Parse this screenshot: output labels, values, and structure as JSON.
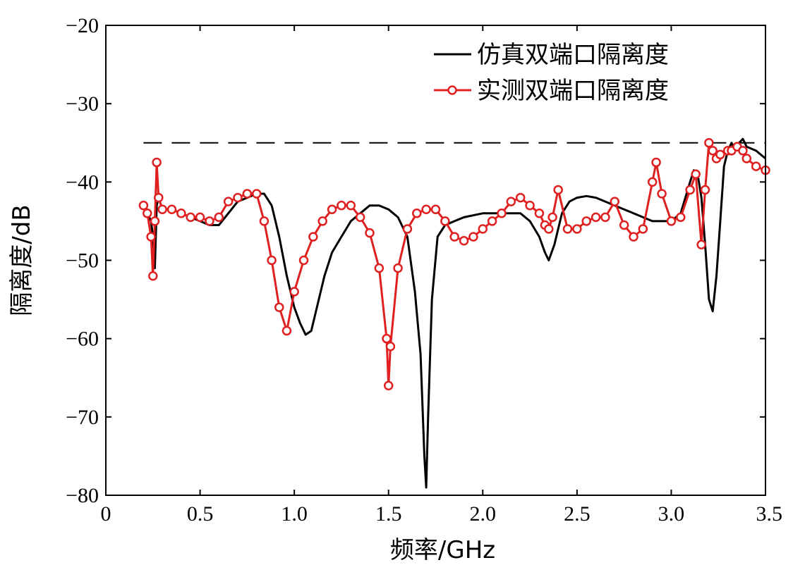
{
  "chart_data": {
    "type": "line",
    "title": "",
    "xlabel": "频率/GHz",
    "ylabel": "隔离度/dB",
    "xlim": [
      0,
      3.5
    ],
    "ylim": [
      -80,
      -20
    ],
    "xticks": [
      0,
      0.5,
      1.0,
      1.5,
      2.0,
      2.5,
      3.0,
      3.5
    ],
    "xtick_labels": [
      "0",
      "0.5",
      "1.0",
      "1.5",
      "2.0",
      "2.5",
      "3.0",
      "3.5"
    ],
    "yticks": [
      -80,
      -70,
      -60,
      -50,
      -40,
      -30,
      -20
    ],
    "ytick_labels": [
      "−80",
      "−70",
      "−60",
      "−50",
      "−40",
      "−30",
      "−20"
    ],
    "grid": false,
    "legend_position": "top-right",
    "reference_line": {
      "y": -35,
      "style": "dashed",
      "color": "#000000"
    },
    "series": [
      {
        "name": "仿真双端口隔离度",
        "color": "#000000",
        "marker": "none",
        "x": [
          0.2,
          0.22,
          0.24,
          0.25,
          0.26,
          0.27,
          0.28,
          0.3,
          0.35,
          0.4,
          0.45,
          0.5,
          0.55,
          0.6,
          0.65,
          0.7,
          0.75,
          0.8,
          0.84,
          0.88,
          0.92,
          0.96,
          1.0,
          1.03,
          1.06,
          1.09,
          1.12,
          1.16,
          1.2,
          1.25,
          1.3,
          1.35,
          1.4,
          1.45,
          1.5,
          1.55,
          1.6,
          1.64,
          1.67,
          1.69,
          1.7,
          1.71,
          1.73,
          1.76,
          1.8,
          1.85,
          1.9,
          2.0,
          2.1,
          2.2,
          2.25,
          2.3,
          2.33,
          2.35,
          2.38,
          2.42,
          2.46,
          2.5,
          2.55,
          2.6,
          2.65,
          2.7,
          2.75,
          2.8,
          2.85,
          2.9,
          2.95,
          3.0,
          3.05,
          3.1,
          3.12,
          3.14,
          3.16,
          3.18,
          3.2,
          3.22,
          3.24,
          3.26,
          3.28,
          3.3,
          3.32,
          3.34,
          3.36,
          3.38,
          3.4,
          3.45,
          3.5
        ],
        "y": [
          -43,
          -44,
          -45,
          -47,
          -51,
          -43,
          -42,
          -43.5,
          -43.5,
          -44,
          -44.5,
          -45,
          -45.5,
          -45.5,
          -44,
          -42.5,
          -42,
          -41.5,
          -41.5,
          -43,
          -47,
          -52,
          -56,
          -58,
          -59.5,
          -59,
          -56,
          -52,
          -49,
          -47,
          -45,
          -44,
          -43,
          -43,
          -43.5,
          -44.5,
          -47,
          -54,
          -62,
          -75,
          -79,
          -70,
          -55,
          -47,
          -45.5,
          -45,
          -44.5,
          -44,
          -44,
          -44,
          -45,
          -47,
          -49,
          -50,
          -48,
          -44,
          -42.5,
          -42,
          -41.8,
          -42,
          -42.5,
          -43,
          -43.5,
          -44,
          -44.5,
          -45,
          -45,
          -45,
          -44,
          -40,
          -38.5,
          -39,
          -42,
          -48,
          -55,
          -56.5,
          -52,
          -45,
          -38,
          -36,
          -35,
          -36,
          -35,
          -34.5,
          -35.5,
          -36,
          -37
        ]
      },
      {
        "name": "实测双端口隔离度",
        "color": "#e02020",
        "marker": "circle",
        "x": [
          0.2,
          0.22,
          0.24,
          0.25,
          0.26,
          0.27,
          0.28,
          0.3,
          0.35,
          0.4,
          0.45,
          0.5,
          0.55,
          0.6,
          0.65,
          0.7,
          0.75,
          0.8,
          0.84,
          0.88,
          0.92,
          0.96,
          1.0,
          1.05,
          1.1,
          1.15,
          1.2,
          1.25,
          1.3,
          1.35,
          1.4,
          1.45,
          1.49,
          1.5,
          1.51,
          1.55,
          1.6,
          1.65,
          1.7,
          1.75,
          1.8,
          1.85,
          1.9,
          1.95,
          2.0,
          2.05,
          2.1,
          2.15,
          2.2,
          2.25,
          2.3,
          2.33,
          2.35,
          2.37,
          2.4,
          2.45,
          2.5,
          2.55,
          2.6,
          2.65,
          2.7,
          2.75,
          2.8,
          2.85,
          2.9,
          2.92,
          2.95,
          3.0,
          3.05,
          3.1,
          3.13,
          3.16,
          3.18,
          3.2,
          3.22,
          3.24,
          3.26,
          3.3,
          3.32,
          3.35,
          3.38,
          3.4,
          3.45,
          3.5
        ],
        "y": [
          -43,
          -44,
          -47,
          -52,
          -45,
          -37.5,
          -42,
          -43.5,
          -43.5,
          -44,
          -44.5,
          -44.5,
          -45,
          -44.5,
          -42.5,
          -42,
          -41.5,
          -41.5,
          -45,
          -50,
          -56,
          -59,
          -54,
          -50,
          -47,
          -45,
          -43.5,
          -43,
          -43,
          -44.5,
          -46.5,
          -51,
          -60,
          -66,
          -61,
          -51,
          -46,
          -44,
          -43.5,
          -43.5,
          -45,
          -47,
          -47.5,
          -47,
          -46,
          -45,
          -44,
          -42.5,
          -42,
          -43,
          -44,
          -45.5,
          -46,
          -44.5,
          -41,
          -46,
          -46,
          -45,
          -44.5,
          -44.5,
          -42.5,
          -45.5,
          -47,
          -46,
          -40,
          -37.5,
          -41.5,
          -45,
          -44.5,
          -41,
          -39,
          -48,
          -41,
          -35,
          -36,
          -37,
          -36.5,
          -36,
          -36,
          -35.5,
          -36,
          -37,
          -38,
          -38.5
        ]
      }
    ]
  }
}
